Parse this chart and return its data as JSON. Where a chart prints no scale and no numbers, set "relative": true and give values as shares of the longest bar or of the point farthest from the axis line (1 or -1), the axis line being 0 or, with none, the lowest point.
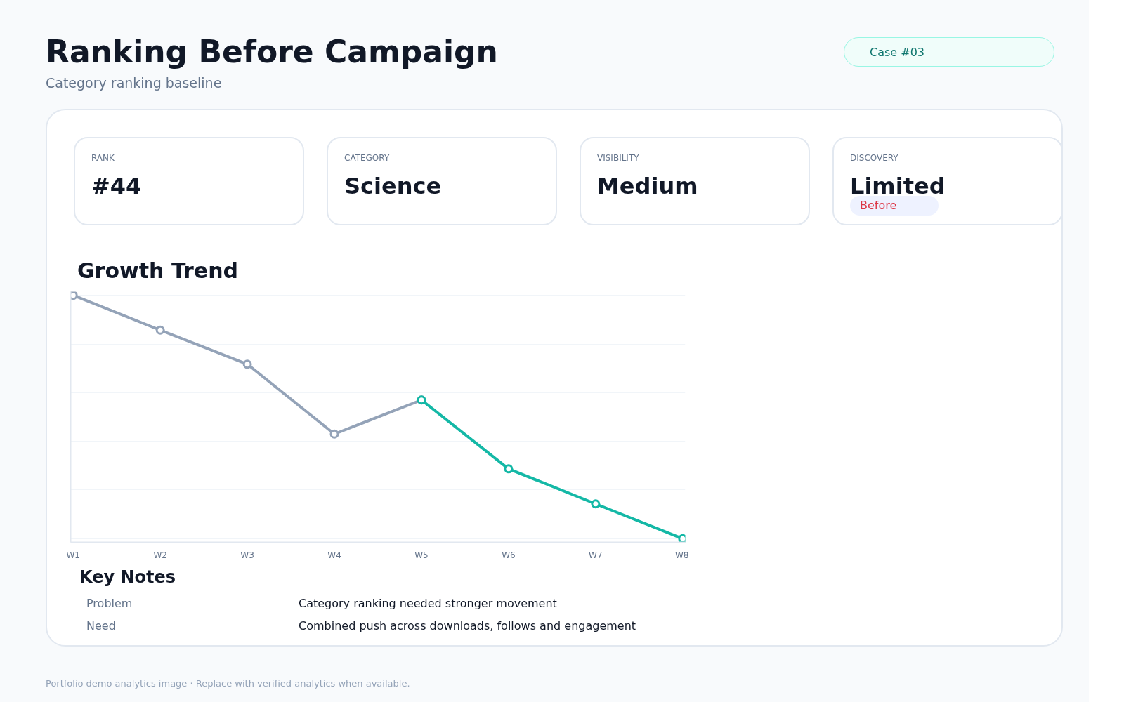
{
  "chart_data": {
    "type": "line",
    "title": "Ranking Before Campaign",
    "subtitle": "Category ranking baseline",
    "categories": [
      "W1",
      "W2",
      "W3",
      "W4",
      "W5",
      "W6",
      "W7",
      "W8"
    ],
    "relative": true,
    "grid": "y",
    "marker": "circle",
    "line_style": "solid",
    "series": [
      {
        "color": "#94a3b8",
        "values": [
          1.0,
          0.857,
          0.717,
          0.43,
          0.57,
          null,
          null,
          null
        ]
      },
      {
        "color": "#14b8a6",
        "values": [
          null,
          null,
          null,
          null,
          0.57,
          0.287,
          0.143,
          0.0
        ]
      }
    ],
    "annotations": [
      "Case #03",
      "RANK",
      "#44",
      "CATEGORY",
      "Science",
      "VISIBILITY",
      "Medium",
      "DISCOVERY",
      "Limited",
      "Before",
      "Growth Trend",
      "Key Notes",
      "Problem",
      "Category ranking needed stronger movement",
      "Need",
      "Combined push across downloads, follows and engagement",
      "Portfolio demo analytics image · Replace with verified analytics when available."
    ]
  }
}
